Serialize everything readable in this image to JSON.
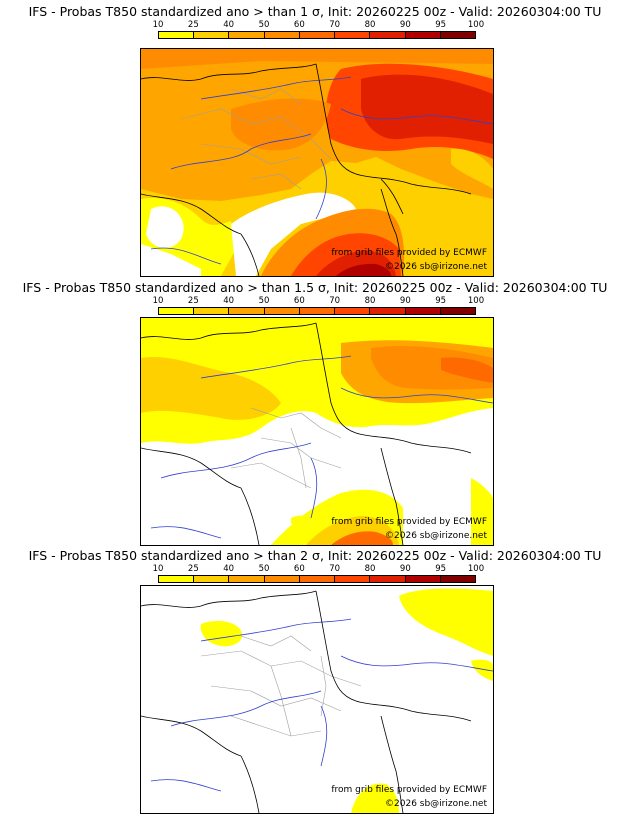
{
  "colors": {
    "scale": [
      "#ffff00",
      "#ffd000",
      "#ffa500",
      "#ff8c00",
      "#ff6a00",
      "#ff4500",
      "#e02000",
      "#b00000",
      "#800000"
    ],
    "border_country": "#000000",
    "border_region": "#a0a0a0",
    "river": "#3040d0"
  },
  "colorbar": {
    "ticks": [
      "10",
      "25",
      "40",
      "50",
      "60",
      "70",
      "80",
      "90",
      "95",
      "100"
    ]
  },
  "credits": {
    "source": "from grib files provided by ECMWF",
    "copyright": "©2026 sb@irizone.net"
  },
  "panels": [
    {
      "title": "IFS - Probas T850  standardized ano > than 1 σ, Init: 20260225 00z - Valid: 20260304:00 TU",
      "threshold": "1 σ"
    },
    {
      "title": "IFS - Probas T850  standardized ano > than 1.5 σ, Init: 20260225 00z - Valid: 20260304:00 TU",
      "threshold": "1.5 σ"
    },
    {
      "title": "IFS - Probas T850  standardized ano > than 2 σ, Init: 20260225 00z - Valid: 20260304:00 TU",
      "threshold": "2 σ"
    }
  ]
}
